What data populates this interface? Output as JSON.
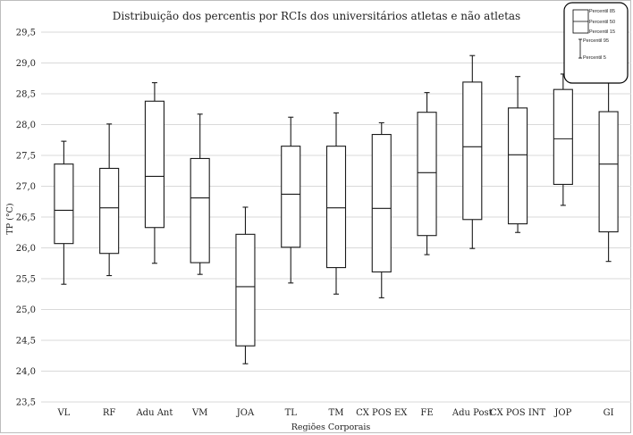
{
  "chart_data": {
    "type": "boxplot",
    "title": "Distribuição dos percentis por RCIs dos universitários atletas e não atletas",
    "xlabel": "Regiões Corporais",
    "ylabel": "TP (°C)",
    "ylim": [
      23.5,
      29.5
    ],
    "yticks": [
      "23,5",
      "24,0",
      "24,5",
      "25,0",
      "25,5",
      "26,0",
      "26,5",
      "27,0",
      "27,5",
      "28,0",
      "28,5",
      "29,0",
      "29,5"
    ],
    "grid": true,
    "legend_position": "top-right",
    "legend": {
      "p85": "Percentil 85",
      "p50": "Percentil 50",
      "p15": "Percentil 15",
      "p95": "Percentil 95",
      "p5": "Percentil 5"
    },
    "categories": [
      "VL",
      "RF",
      "Adu Ant",
      "VM",
      "JOA",
      "TL",
      "TM",
      "CX POS EX",
      "FE",
      "Adu Post",
      "CX POS INT",
      "JOP",
      "GI"
    ],
    "series": [
      {
        "name": "VL",
        "p5": 25.41,
        "p15": 26.07,
        "p50": 26.61,
        "p85": 27.36,
        "p95": 27.73
      },
      {
        "name": "RF",
        "p5": 25.55,
        "p15": 25.91,
        "p50": 26.65,
        "p85": 27.29,
        "p95": 28.01
      },
      {
        "name": "Adu Ant",
        "p5": 25.75,
        "p15": 26.33,
        "p50": 27.16,
        "p85": 28.38,
        "p95": 28.68
      },
      {
        "name": "VM",
        "p5": 25.57,
        "p15": 25.76,
        "p50": 26.81,
        "p85": 27.45,
        "p95": 28.17
      },
      {
        "name": "JOA",
        "p5": 24.12,
        "p15": 24.41,
        "p50": 25.37,
        "p85": 26.22,
        "p95": 26.66
      },
      {
        "name": "TL",
        "p5": 25.43,
        "p15": 26.01,
        "p50": 26.87,
        "p85": 27.65,
        "p95": 28.12
      },
      {
        "name": "TM",
        "p5": 25.25,
        "p15": 25.68,
        "p50": 26.65,
        "p85": 27.65,
        "p95": 28.19
      },
      {
        "name": "CX POS EX",
        "p5": 25.19,
        "p15": 25.61,
        "p50": 26.64,
        "p85": 27.84,
        "p95": 28.03
      },
      {
        "name": "FE",
        "p5": 25.89,
        "p15": 26.2,
        "p50": 27.22,
        "p85": 28.2,
        "p95": 28.52
      },
      {
        "name": "Adu Post",
        "p5": 25.99,
        "p15": 26.46,
        "p50": 27.64,
        "p85": 28.69,
        "p95": 29.12
      },
      {
        "name": "CX POS INT",
        "p5": 26.25,
        "p15": 26.39,
        "p50": 27.51,
        "p85": 28.27,
        "p95": 28.78
      },
      {
        "name": "JOP",
        "p5": 26.69,
        "p15": 27.03,
        "p50": 27.77,
        "p85": 28.57,
        "p95": 28.82
      },
      {
        "name": "GI",
        "p5": 25.78,
        "p15": 26.26,
        "p50": 27.36,
        "p85": 28.21,
        "p95": 28.69
      }
    ]
  }
}
